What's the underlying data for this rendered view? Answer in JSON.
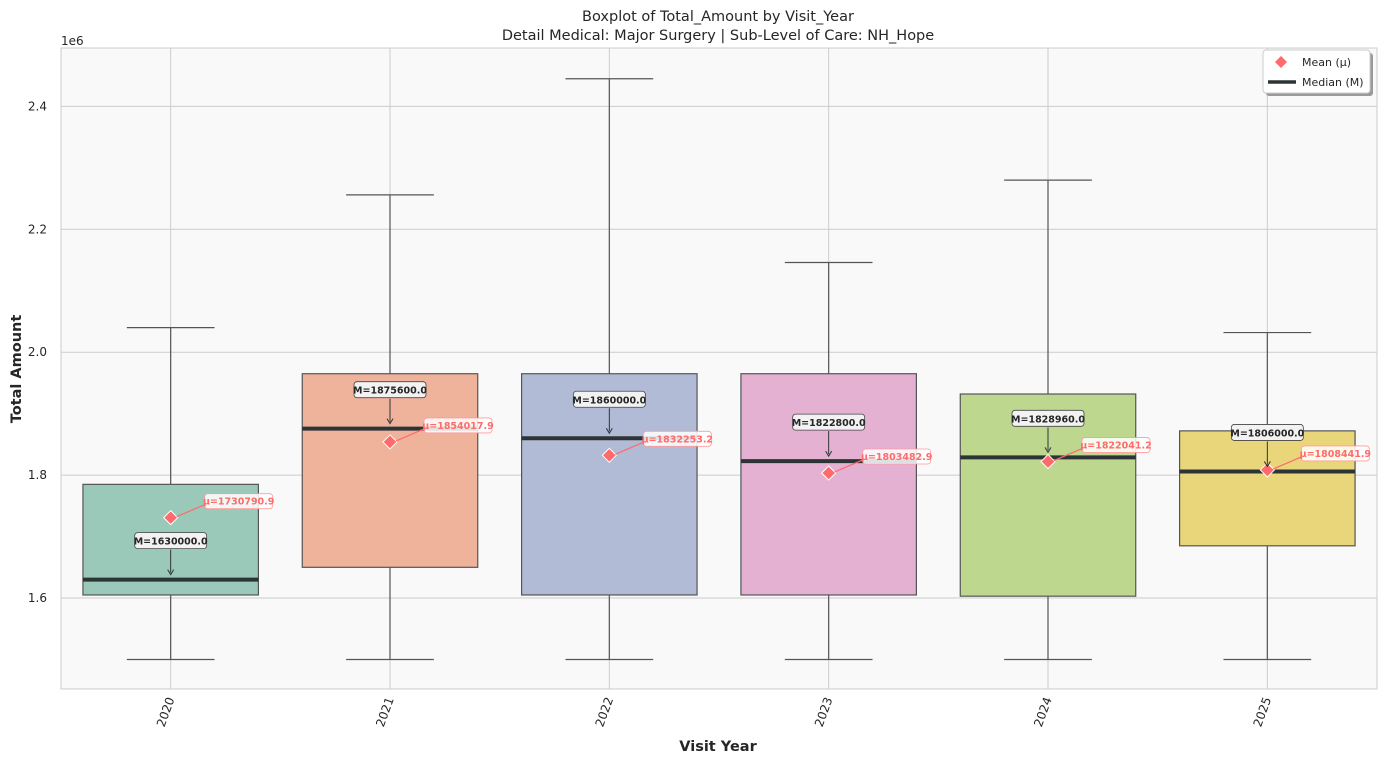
{
  "chart_data": {
    "type": "box",
    "title": "Boxplot of Total_Amount by Visit_Year",
    "subtitle": "Detail Medical: Major Surgery | Sub-Level of Care: NH_Hope",
    "xlabel": "Visit Year",
    "ylabel": "Total Amount",
    "y_offset_label": "1e6",
    "y_scale_factor": 1000000,
    "ylim": [
      1.452,
      2.495
    ],
    "yticks": [
      1.6,
      1.8,
      2.0,
      2.2,
      2.4
    ],
    "ytick_labels": [
      "1.6",
      "1.8",
      "2.0",
      "2.2",
      "2.4"
    ],
    "grid": true,
    "legend_position": "top-right",
    "legend": [
      {
        "label": "Mean (μ)",
        "marker": "diamond",
        "color": "#ff6b6b"
      },
      {
        "label": "Median (M)",
        "marker": "line",
        "color": "#2d3436"
      }
    ],
    "categories": [
      "2020",
      "2021",
      "2022",
      "2023",
      "2024",
      "2025"
    ],
    "boxes": [
      {
        "category": "2020",
        "whisker_low": 1.5,
        "q1": 1.605,
        "median": 1.63,
        "q3": 1.785,
        "whisker_high": 2.04,
        "mean": 1.7307909,
        "median_label": "M=1630000.0",
        "mean_label": "μ=1730790.9",
        "color": "#9ac9b9"
      },
      {
        "category": "2021",
        "whisker_low": 1.5,
        "q1": 1.65,
        "median": 1.8756,
        "q3": 1.965,
        "whisker_high": 2.256,
        "mean": 1.8540179,
        "median_label": "M=1875600.0",
        "mean_label": "μ=1854017.9",
        "color": "#efb39c"
      },
      {
        "category": "2022",
        "whisker_low": 1.5,
        "q1": 1.605,
        "median": 1.86,
        "q3": 1.965,
        "whisker_high": 2.445,
        "mean": 1.8322532,
        "median_label": "M=1860000.0",
        "mean_label": "μ=1832253.2",
        "color": "#b1bbd6"
      },
      {
        "category": "2023",
        "whisker_low": 1.5,
        "q1": 1.605,
        "median": 1.8228,
        "q3": 1.965,
        "whisker_high": 2.146,
        "mean": 1.8034829,
        "median_label": "M=1822800.0",
        "mean_label": "μ=1803482.9",
        "color": "#e4b1d2"
      },
      {
        "category": "2024",
        "whisker_low": 1.5,
        "q1": 1.603,
        "median": 1.82896,
        "q3": 1.932,
        "whisker_high": 2.28,
        "mean": 1.8220412,
        "median_label": "M=1828960.0",
        "mean_label": "μ=1822041.2",
        "color": "#bdd78f"
      },
      {
        "category": "2025",
        "whisker_low": 1.5,
        "q1": 1.685,
        "median": 1.806,
        "q3": 1.872,
        "whisker_high": 2.032,
        "mean": 1.8084419,
        "median_label": "M=1806000.0",
        "mean_label": "μ=1808441.9",
        "color": "#e9d67b"
      }
    ]
  }
}
